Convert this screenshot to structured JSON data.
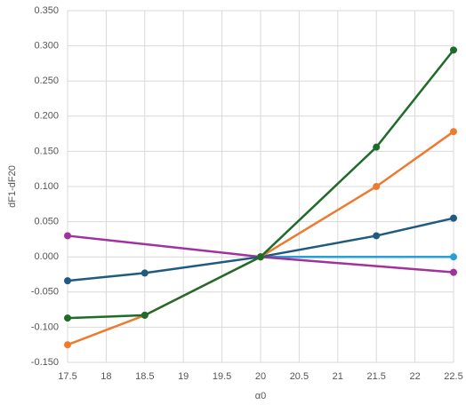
{
  "chart_data": {
    "type": "line",
    "x_label": "α0",
    "y_label": "dF1-dF20",
    "series": [
      {
        "color": "#2a9fd6",
        "x": [
          20,
          22.5
        ],
        "values": [
          0,
          0
        ]
      },
      {
        "color": "#a0329f",
        "x": [
          17.5,
          20,
          22.5
        ],
        "values": [
          0.03,
          0,
          -0.022
        ]
      },
      {
        "color": "#1f5a80",
        "x": [
          17.5,
          18.5,
          20,
          21.5,
          22.5
        ],
        "values": [
          -0.034,
          -0.023,
          0,
          0.03,
          0.055
        ]
      },
      {
        "color": "#ee7a30",
        "x": [
          17.5,
          18.5,
          20,
          21.5,
          22.5
        ],
        "values": [
          -0.125,
          -0.083,
          0,
          0.1,
          0.178
        ]
      },
      {
        "color": "#1e6b2a",
        "x": [
          17.5,
          18.5,
          20,
          21.5,
          22.5
        ],
        "values": [
          -0.087,
          -0.083,
          0,
          0.156,
          0.294
        ]
      }
    ],
    "xlim": [
      17.5,
      22.5
    ],
    "xticks": [
      17.5,
      18,
      18.5,
      19,
      19.5,
      20,
      20.5,
      21,
      21.5,
      22,
      22.5
    ],
    "ylim": [
      -0.15,
      0.35
    ],
    "yticks": [
      {
        "value": -0.15,
        "label": "-0.150"
      },
      {
        "value": -0.1,
        "label": "-0.100"
      },
      {
        "value": -0.05,
        "label": "-0.050"
      },
      {
        "value": 0,
        "label": "0.000"
      },
      {
        "value": 0.05,
        "label": "0.050"
      },
      {
        "value": 0.1,
        "label": "0.100"
      },
      {
        "value": 0.15,
        "label": "0.150"
      },
      {
        "value": 0.2,
        "label": "0.200"
      },
      {
        "value": 0.25,
        "label": "0.250"
      },
      {
        "value": 0.3,
        "label": "0.300"
      },
      {
        "value": 0.35,
        "label": "0.350"
      }
    ],
    "grid": true
  }
}
